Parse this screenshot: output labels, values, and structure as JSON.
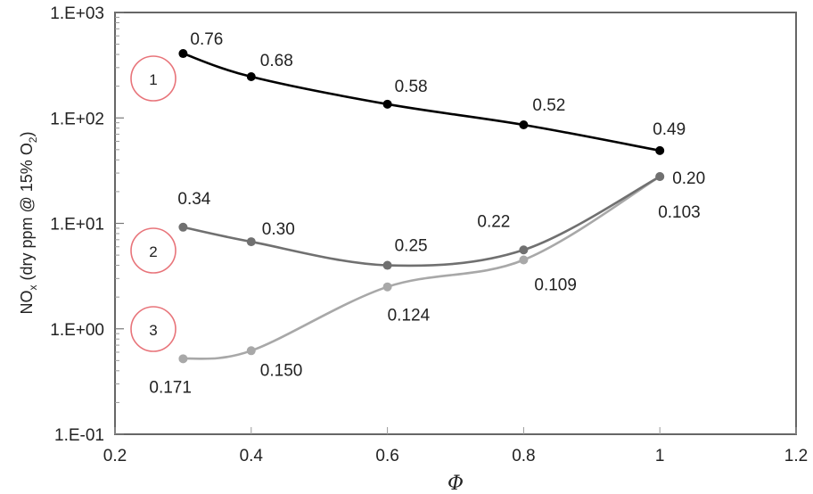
{
  "chart_data": {
    "type": "line",
    "title": "",
    "xlabel": "Φ",
    "ylabel": "NOx (dry ppm @ 15% O2)",
    "ylabel_parts": {
      "main": "NO",
      "sub1": "x",
      "mid": " (dry ppm @ 15% O",
      "sub2": "2",
      "end": ")"
    },
    "xlim": [
      0.2,
      1.2
    ],
    "ylim": [
      0.1,
      1000
    ],
    "yscale": "log",
    "x_ticks": [
      "0.2",
      "0.4",
      "0.6",
      "0.8",
      "1",
      "1.2"
    ],
    "y_ticks": [
      "1.E-01",
      "1.E+00",
      "1.E+01",
      "1.E+02",
      "1.E+03"
    ],
    "grid": false,
    "legend": "circled numbers 1, 2, 3 at left of each series",
    "x": [
      0.3,
      0.4,
      0.6,
      0.8,
      1.0
    ],
    "series": [
      {
        "name": "1",
        "color": "#000000",
        "values": [
          408,
          246,
          135,
          86,
          49
        ],
        "point_labels": [
          "0.76",
          "0.68",
          "0.58",
          "0.52",
          "0.49"
        ]
      },
      {
        "name": "2",
        "color": "#707070",
        "values": [
          9.2,
          6.7,
          4.0,
          5.6,
          27.8
        ],
        "point_labels": [
          "0.34",
          "0.30",
          "0.25",
          "0.22",
          "0.20"
        ]
      },
      {
        "name": "3",
        "color": "#a8a8a8",
        "values": [
          0.52,
          0.62,
          2.5,
          4.5,
          27.8
        ],
        "point_labels": [
          "0.171",
          "0.150",
          "0.124",
          "0.109",
          "0.103"
        ]
      }
    ],
    "series_markers": [
      {
        "label": "1",
        "color": "#e8747a"
      },
      {
        "label": "2",
        "color": "#e8747a"
      },
      {
        "label": "3",
        "color": "#e8747a"
      }
    ]
  }
}
